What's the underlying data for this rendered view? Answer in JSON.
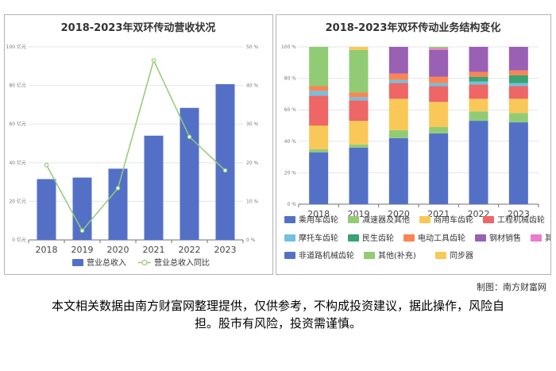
{
  "credit": "制图：南方财富网",
  "disclaimer": "本文相关数据由南方财富网整理提供，仅供参考，不构成投资建议，据此操作，风险自担。股市有风险，投资需谨慎。",
  "chart_data": [
    {
      "type": "bar",
      "title": "2018-2023年双环传动营收状况",
      "categories": [
        "2018",
        "2019",
        "2020",
        "2021",
        "2022",
        "2023"
      ],
      "y_left_ticks": [
        "0 亿元",
        "20 亿元",
        "40 亿元",
        "60 亿元",
        "80 亿元",
        "100 亿元"
      ],
      "y_right_ticks": [
        "0 %",
        "10 %",
        "20 %",
        "30 %",
        "40 %",
        "50 %"
      ],
      "ylim_left": [
        0,
        100
      ],
      "ylim_right": [
        0,
        50
      ],
      "series": [
        {
          "name": "营业总收入",
          "type": "bar",
          "axis": "left",
          "color": "#5470c6",
          "values": [
            31.5,
            32.3,
            36.9,
            54.0,
            68.4,
            80.7
          ]
        },
        {
          "name": "营业总收入同比",
          "type": "line",
          "axis": "right",
          "color": "#91cc75",
          "values": [
            19.4,
            2.4,
            13.4,
            46.5,
            26.7,
            18.0
          ]
        }
      ],
      "legend_position": "bottom"
    },
    {
      "type": "bar",
      "stacked": true,
      "title": "2018-2023年双环传动业务结构变化",
      "categories": [
        "2018",
        "2019",
        "2020",
        "2021",
        "2022",
        "2023"
      ],
      "y_ticks": [
        "0 %",
        "20 %",
        "40 %",
        "60 %",
        "80 %",
        "100 %"
      ],
      "ylim": [
        0,
        100
      ],
      "series": [
        {
          "name": "非道路机械齿轮",
          "color": "#5470c6",
          "values": [
            33,
            36,
            42,
            45,
            53,
            52
          ]
        },
        {
          "name": "其他(补充)",
          "color": "#91cc75",
          "values": [
            2,
            2,
            5,
            4,
            6,
            6
          ]
        },
        {
          "name": "同步器",
          "color": "#fac858",
          "values": [
            0,
            0,
            0,
            0,
            0,
            0
          ]
        },
        {
          "name": "商用车齿轮",
          "color": "#fac858",
          "values": [
            15,
            15,
            20,
            16,
            8,
            9
          ]
        },
        {
          "name": "工程机械齿轮",
          "color": "#ee6666",
          "values": [
            19,
            13,
            10,
            10,
            9,
            8
          ]
        },
        {
          "name": "摩托车齿轮",
          "color": "#73c0de",
          "values": [
            3,
            2,
            2,
            2,
            2,
            2
          ]
        },
        {
          "name": "民生齿轮",
          "color": "#3ba272",
          "values": [
            0,
            0,
            0,
            0,
            3,
            5
          ]
        },
        {
          "name": "电动工具齿轮",
          "color": "#fc8452",
          "values": [
            3,
            3,
            4,
            4,
            3,
            3
          ]
        },
        {
          "name": "钢材销售",
          "color": "#9a60b4",
          "values": [
            0,
            0,
            17,
            17,
            16,
            15
          ]
        },
        {
          "name": "其他",
          "color": "#ea7ccc",
          "values": [
            0,
            0,
            0,
            1,
            0,
            0
          ]
        },
        {
          "name": "减速器及其他",
          "color": "#91cc75",
          "values": [
            25,
            27,
            0,
            1,
            0,
            0
          ]
        },
        {
          "name": "乘用车齿轮",
          "color": "#fac858",
          "values": [
            0,
            2,
            0,
            0,
            0,
            0
          ]
        }
      ],
      "legend_rows": [
        [
          {
            "name": "乘用车齿轮",
            "color": "#5470c6"
          },
          {
            "name": "减速器及其他",
            "color": "#91cc75"
          },
          {
            "name": "商用车齿轮",
            "color": "#fac858"
          },
          {
            "name": "工程机械齿轮",
            "color": "#ee6666"
          }
        ],
        [
          {
            "name": "摩托车齿轮",
            "color": "#73c0de"
          },
          {
            "name": "民生齿轮",
            "color": "#3ba272"
          },
          {
            "name": "电动工具齿轮",
            "color": "#fc8452"
          },
          {
            "name": "钢材销售",
            "color": "#9a60b4"
          },
          {
            "name": "其他",
            "color": "#ea7ccc"
          }
        ],
        [
          {
            "name": "非道路机械齿轮",
            "color": "#5470c6"
          },
          {
            "name": "其他(补充)",
            "color": "#91cc75"
          },
          {
            "name": "同步器",
            "color": "#fac858"
          }
        ]
      ]
    }
  ]
}
